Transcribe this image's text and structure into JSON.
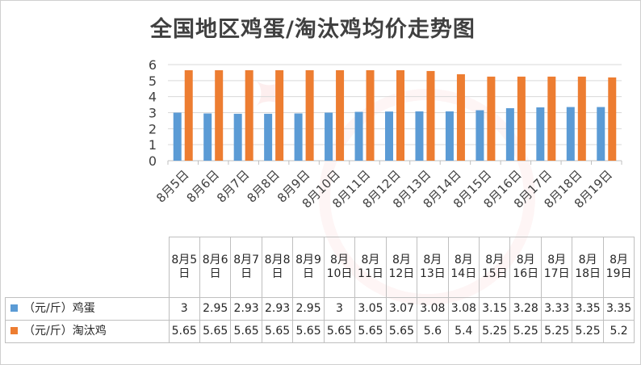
{
  "colors": {
    "egg": "#5B9BD5",
    "culled_hen": "#ED7D31",
    "grid": "#d9d9d9",
    "text": "#404040"
  },
  "chart_data": {
    "type": "bar",
    "title": "全国地区鸡蛋/淘汰鸡均价走势图",
    "categories": [
      "8月5日",
      "8月6日",
      "8月7日",
      "8月8日",
      "8月9日",
      "8月10日",
      "8月11日",
      "8月12日",
      "8月13日",
      "8月14日",
      "8月15日",
      "8月16日",
      "8月17日",
      "8月18日",
      "8月19日"
    ],
    "series": [
      {
        "name": "（元/斤）鸡蛋",
        "color": "#5B9BD5",
        "values": [
          3,
          2.95,
          2.93,
          2.93,
          2.95,
          3,
          3.05,
          3.07,
          3.08,
          3.08,
          3.15,
          3.28,
          3.33,
          3.35,
          3.35
        ]
      },
      {
        "name": "（元/斤）淘汰鸡",
        "color": "#ED7D31",
        "values": [
          5.65,
          5.65,
          5.65,
          5.65,
          5.65,
          5.65,
          5.65,
          5.65,
          5.6,
          5.4,
          5.25,
          5.25,
          5.25,
          5.25,
          5.2
        ]
      }
    ],
    "y_ticks": [
      "0",
      "1",
      "2",
      "3",
      "4",
      "5",
      "6"
    ],
    "ylim": [
      0,
      6
    ],
    "grid": true,
    "legend": "data-table"
  },
  "table": {
    "headers": [
      "8月5日",
      "8月6日",
      "8月7日",
      "8月8日",
      "8月9日",
      "8月10日",
      "8月11日",
      "8月12日",
      "8月13日",
      "8月14日",
      "8月15日",
      "8月16日",
      "8月17日",
      "8月18日",
      "8月19日"
    ],
    "rows": [
      {
        "label": "（元/斤）鸡蛋",
        "cells": [
          "3",
          "2.95",
          "2.93",
          "2.93",
          "2.95",
          "3",
          "3.05",
          "3.07",
          "3.08",
          "3.08",
          "3.15",
          "3.28",
          "3.33",
          "3.35",
          "3.35"
        ]
      },
      {
        "label": "（元/斤）淘汰鸡",
        "cells": [
          "5.65",
          "5.65",
          "5.65",
          "5.65",
          "5.65",
          "5.65",
          "5.65",
          "5.65",
          "5.6",
          "5.4",
          "5.25",
          "5.25",
          "5.25",
          "5.25",
          "5.2"
        ]
      }
    ]
  }
}
